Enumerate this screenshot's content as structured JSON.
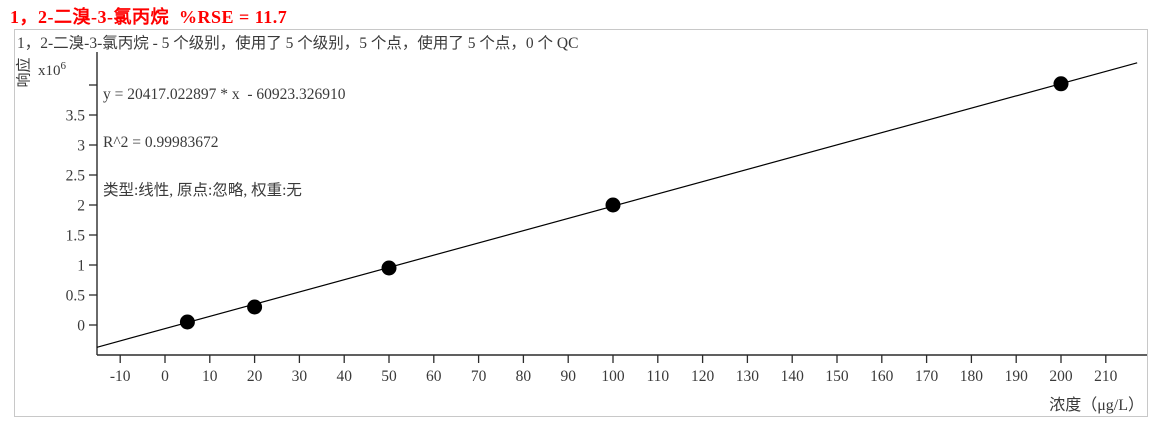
{
  "chart_data": {
    "type": "scatter",
    "title": "1，2-二溴-3-氯丙烷  %RSE = 11.7",
    "title_color": "#ff0000",
    "summary": "1，2-二溴-3-氯丙烷 - 5 个级别，使用了 5 个级别，5 个点，使用了 5 个点，0 个 QC",
    "equation": "y = 20417.022897 * x  - 60923.326910",
    "r_squared": "R^2 = 0.99983672",
    "fit_info": "类型:线性, 原点:忽略, 权重:无",
    "xlabel": "浓度（μg/L）",
    "ylabel": "响应",
    "y_scale_base": "x10",
    "y_scale_exp": "6",
    "x": [
      5,
      20,
      50,
      100,
      200
    ],
    "y_millions": [
      0.05,
      0.3,
      0.95,
      2.0,
      4.02
    ],
    "fit": {
      "slope": 20417.022897,
      "intercept": -60923.32691
    },
    "x_ticks": [
      -10,
      0,
      10,
      20,
      30,
      40,
      50,
      60,
      70,
      80,
      90,
      100,
      110,
      120,
      130,
      140,
      150,
      160,
      170,
      180,
      190,
      200,
      210
    ],
    "y_ticks_labeled": [
      0,
      0.5,
      1,
      1.5,
      2,
      2.5,
      3,
      3.5
    ],
    "y_ticks_unlabeled": [
      4
    ],
    "xlim_drawn": [
      -15.2,
      217
    ],
    "grid": false,
    "legend": "none",
    "point_color": "#000000",
    "line_color": "#000000",
    "axis_color": "#2b2b2b"
  }
}
